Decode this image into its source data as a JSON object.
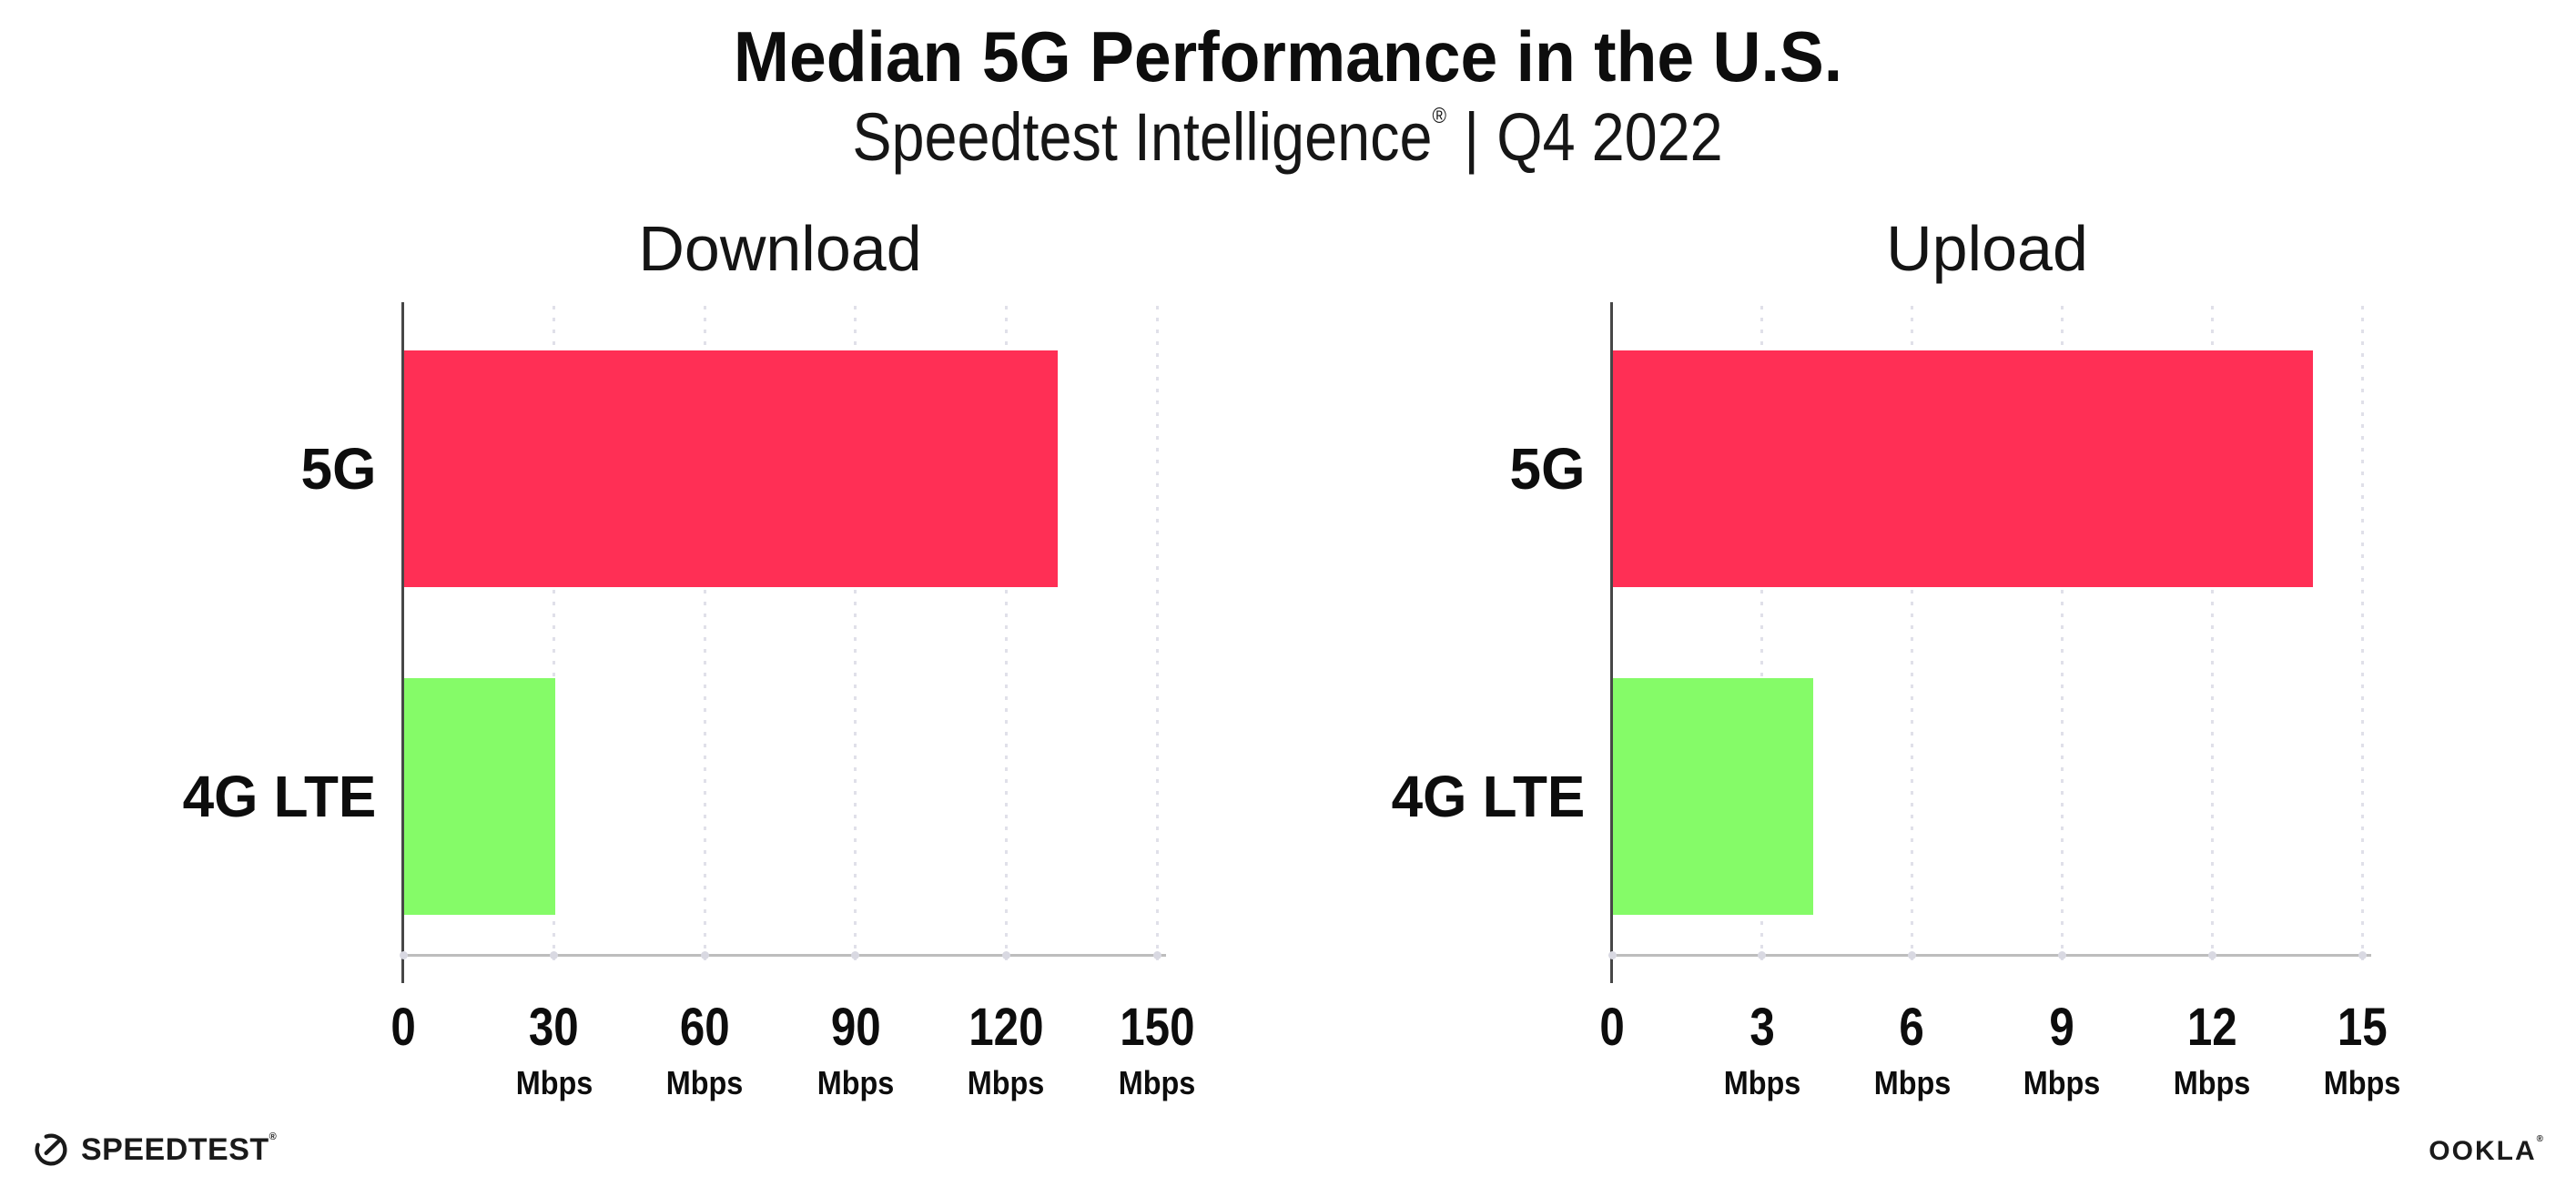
{
  "header": {
    "title": "Median 5G Performance in the U.S.",
    "subtitle_brand": "Speedtest Intelligence",
    "subtitle_reg": "®",
    "subtitle_divider": "|",
    "subtitle_period": "Q4 2022"
  },
  "footer": {
    "speedtest_wordmark": "SPEEDTEST",
    "speedtest_reg": "®",
    "ookla_wordmark": "OOKLA",
    "ookla_reg": "®"
  },
  "colors": {
    "bar_5g": "#ff2f55",
    "bar_4g_lte": "#85fb68",
    "x_axis_line": "#bdbdbd",
    "y_axis_line": "#474747",
    "gridline_dots": "#e0e0e9",
    "text": "#0d0d0d"
  },
  "chart_data": [
    {
      "type": "bar",
      "orientation": "horizontal",
      "title": "Download",
      "categories": [
        "5G",
        "4G LTE"
      ],
      "values": [
        130,
        30
      ],
      "bar_colors": [
        "#ff2f55",
        "#85fb68"
      ],
      "unit": "Mbps",
      "xlim": [
        0,
        150
      ],
      "xticks": [
        0,
        30,
        60,
        90,
        120,
        150
      ],
      "xtick_unit_label": "Mbps",
      "grid": "vertical-dotted",
      "legend": "none"
    },
    {
      "type": "bar",
      "orientation": "horizontal",
      "title": "Upload",
      "categories": [
        "5G",
        "4G LTE"
      ],
      "values": [
        14,
        4
      ],
      "bar_colors": [
        "#ff2f55",
        "#85fb68"
      ],
      "unit": "Mbps",
      "xlim": [
        0,
        15
      ],
      "xticks": [
        0,
        3,
        6,
        9,
        12,
        15
      ],
      "xtick_unit_label": "Mbps",
      "grid": "vertical-dotted",
      "legend": "none"
    }
  ]
}
